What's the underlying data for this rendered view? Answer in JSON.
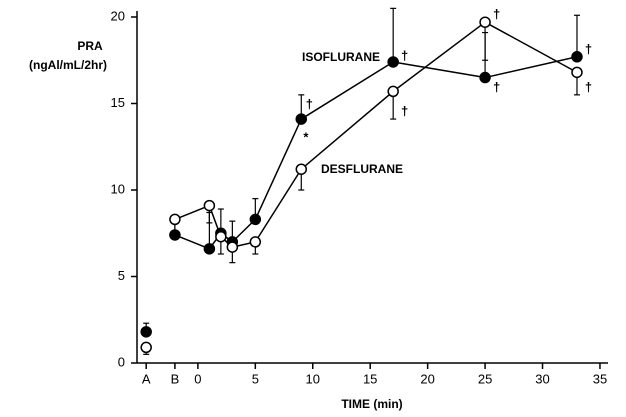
{
  "chart_data": {
    "type": "line",
    "y_label": [
      "PRA",
      "(ngAl/mL/2hr)"
    ],
    "x_label": "TIME (min)",
    "x": [
      -4.5,
      -2,
      1,
      2,
      3,
      5,
      9,
      17,
      25,
      33
    ],
    "xlim": [
      -5.3,
      35.7
    ],
    "xticks": [
      {
        "value": -4.5,
        "label": "A"
      },
      {
        "value": -2,
        "label": "B"
      },
      0,
      5,
      10,
      15,
      20,
      25,
      30,
      35
    ],
    "ylim": [
      0,
      20
    ],
    "yticks": [
      0,
      5,
      10,
      15,
      20
    ],
    "connect_from": 1,
    "series": [
      {
        "name": "ISOFLURANE",
        "color": "#000000",
        "marker_fill": "#000000",
        "error_direction": "up",
        "values": [
          1.8,
          7.4,
          6.6,
          7.5,
          7.0,
          8.3,
          14.1,
          17.4,
          16.5,
          17.7
        ],
        "errors": [
          0.5,
          1.0,
          2.1,
          1.4,
          1.2,
          1.2,
          1.4,
          3.1,
          2.6,
          2.4
        ]
      },
      {
        "name": "DESFLURANE",
        "color": "#000000",
        "marker_fill": "#ffffff",
        "error_direction": "down",
        "values": [
          0.9,
          8.3,
          9.1,
          7.3,
          6.7,
          7.0,
          11.2,
          15.7,
          19.7,
          16.8
        ],
        "errors": [
          0.4,
          1.0,
          1.0,
          1.0,
          0.9,
          0.7,
          1.2,
          1.6,
          2.2,
          1.3
        ]
      }
    ],
    "annotations": [
      {
        "text": "†",
        "x": 9.7,
        "y": 14.9
      },
      {
        "text": "*",
        "x": 9.4,
        "y": 13.0
      },
      {
        "text": "†",
        "x": 18.0,
        "y": 17.7
      },
      {
        "text": "†",
        "x": 18.0,
        "y": 14.5
      },
      {
        "text": "†",
        "x": 26.0,
        "y": 20.1
      },
      {
        "text": "†",
        "x": 26.0,
        "y": 15.9
      },
      {
        "text": "†",
        "x": 34.0,
        "y": 18.1
      },
      {
        "text": "†",
        "x": 34.0,
        "y": 15.9
      }
    ]
  }
}
